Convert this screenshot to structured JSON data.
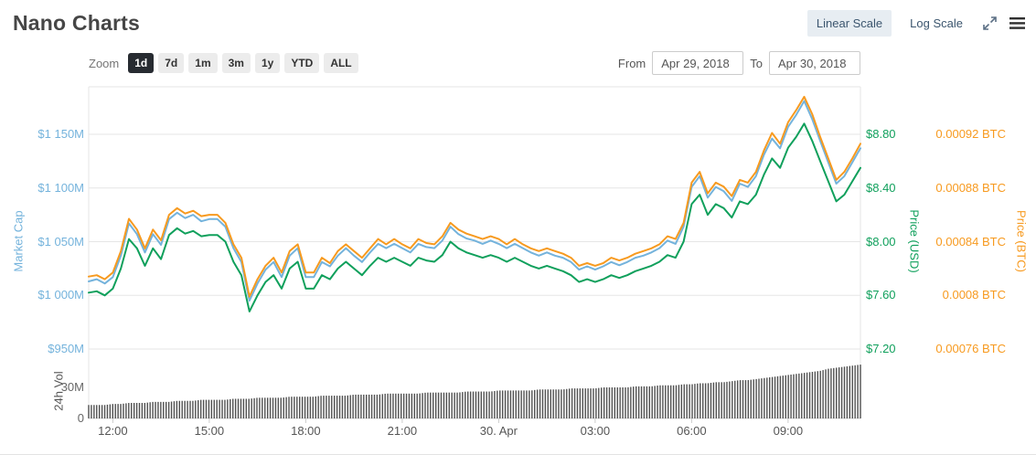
{
  "header": {
    "title": "Nano Charts",
    "linear_scale": "Linear Scale",
    "log_scale": "Log Scale"
  },
  "toolbar": {
    "zoom_label": "Zoom",
    "zoom_buttons": [
      "1d",
      "7d",
      "1m",
      "3m",
      "1y",
      "YTD",
      "ALL"
    ],
    "active_zoom": "1d",
    "from_label": "From",
    "to_label": "To",
    "from_value": "Apr 29, 2018",
    "to_value": "Apr 30, 2018"
  },
  "chart_data": {
    "type": "line",
    "title": "Nano Charts",
    "grid": true,
    "legend": false,
    "x_axis": {
      "labels": [
        {
          "label": "12:00",
          "pos": 0.03125
        },
        {
          "label": "15:00",
          "pos": 0.15625
        },
        {
          "label": "18:00",
          "pos": 0.28125
        },
        {
          "label": "21:00",
          "pos": 0.40625
        },
        {
          "label": "30. Apr",
          "pos": 0.53125
        },
        {
          "label": "03:00",
          "pos": 0.65625
        },
        {
          "label": "06:00",
          "pos": 0.78125
        },
        {
          "label": "09:00",
          "pos": 0.90625
        }
      ]
    },
    "axes": {
      "market_cap": {
        "title": "Market Cap",
        "color": "#74b3dc",
        "side": "left",
        "ticks": [
          {
            "label": "$950M",
            "value": 950
          },
          {
            "label": "$1 000M",
            "value": 1000
          },
          {
            "label": "$1 050M",
            "value": 1050
          },
          {
            "label": "$1 100M",
            "value": 1100
          },
          {
            "label": "$1 150M",
            "value": 1150
          }
        ]
      },
      "price_usd": {
        "title": "Price (USD)",
        "color": "#10a05c",
        "side": "right",
        "ticks": [
          {
            "label": "$7.20",
            "value": 7.2
          },
          {
            "label": "$7.60",
            "value": 7.6
          },
          {
            "label": "$8.00",
            "value": 8.0
          },
          {
            "label": "$8.40",
            "value": 8.4
          },
          {
            "label": "$8.80",
            "value": 8.8
          }
        ]
      },
      "price_btc": {
        "title": "Price (BTC)",
        "color": "#f79a1f",
        "side": "far-right",
        "ticks": [
          {
            "label": "0.00076 BTC",
            "value": 0.00076
          },
          {
            "label": "0.0008 BTC",
            "value": 0.0008
          },
          {
            "label": "0.00084 BTC",
            "value": 0.00084
          },
          {
            "label": "0.00088 BTC",
            "value": 0.00088
          },
          {
            "label": "0.00092 BTC",
            "value": 0.00092
          }
        ]
      },
      "volume": {
        "title": "24h Vol",
        "color": "#555555",
        "side": "left",
        "ticks": [
          {
            "label": "0",
            "value": 0
          },
          {
            "label": "30M",
            "value": 30
          }
        ]
      }
    },
    "series": [
      {
        "name": "Market Cap",
        "axis": "market_cap",
        "color": "#74b3dc",
        "type": "line",
        "unit": "M USD",
        "values": [
          1013,
          1015,
          1011,
          1017,
          1037,
          1067,
          1057,
          1040,
          1057,
          1047,
          1071,
          1077,
          1072,
          1075,
          1069,
          1071,
          1071,
          1064,
          1044,
          1031,
          995,
          1011,
          1024,
          1031,
          1017,
          1037,
          1044,
          1017,
          1017,
          1031,
          1027,
          1037,
          1044,
          1037,
          1031,
          1040,
          1048,
          1044,
          1048,
          1044,
          1040,
          1048,
          1045,
          1044,
          1051,
          1064,
          1057,
          1053,
          1051,
          1048,
          1051,
          1048,
          1044,
          1048,
          1044,
          1040,
          1037,
          1040,
          1037,
          1035,
          1031,
          1024,
          1027,
          1024,
          1027,
          1031,
          1028,
          1031,
          1035,
          1037,
          1040,
          1044,
          1051,
          1048,
          1064,
          1101,
          1111,
          1091,
          1101,
          1097,
          1088,
          1104,
          1101,
          1111,
          1131,
          1146,
          1137,
          1157,
          1168,
          1181,
          1164,
          1144,
          1124,
          1104,
          1111,
          1124,
          1137
        ]
      },
      {
        "name": "Price (USD)",
        "axis": "price_usd",
        "color": "#10a05c",
        "type": "line",
        "unit": "USD",
        "values": [
          7.62,
          7.63,
          7.6,
          7.65,
          7.8,
          8.02,
          7.95,
          7.82,
          7.95,
          7.87,
          8.05,
          8.1,
          8.06,
          8.08,
          8.04,
          8.05,
          8.05,
          8.0,
          7.85,
          7.75,
          7.48,
          7.6,
          7.7,
          7.75,
          7.65,
          7.8,
          7.85,
          7.65,
          7.65,
          7.75,
          7.72,
          7.8,
          7.85,
          7.8,
          7.75,
          7.82,
          7.88,
          7.85,
          7.88,
          7.85,
          7.82,
          7.88,
          7.86,
          7.85,
          7.9,
          8.0,
          7.95,
          7.92,
          7.9,
          7.88,
          7.9,
          7.88,
          7.85,
          7.88,
          7.85,
          7.82,
          7.8,
          7.82,
          7.8,
          7.78,
          7.75,
          7.7,
          7.72,
          7.7,
          7.72,
          7.75,
          7.73,
          7.75,
          7.78,
          7.8,
          7.82,
          7.85,
          7.9,
          7.88,
          8.0,
          8.28,
          8.35,
          8.2,
          8.28,
          8.25,
          8.18,
          8.3,
          8.28,
          8.35,
          8.5,
          8.62,
          8.55,
          8.7,
          8.78,
          8.88,
          8.75,
          8.6,
          8.45,
          8.3,
          8.35,
          8.45,
          8.55
        ]
      },
      {
        "name": "Price (BTC)",
        "axis": "price_btc",
        "color": "#f79a1f",
        "type": "line",
        "unit": "BTC",
        "values": [
          0.000814,
          0.000815,
          0.000812,
          0.000817,
          0.000833,
          0.000857,
          0.000849,
          0.000835,
          0.000849,
          0.000841,
          0.00086,
          0.000865,
          0.000861,
          0.000863,
          0.000859,
          0.00086,
          0.00086,
          0.000854,
          0.000838,
          0.000828,
          0.000799,
          0.000812,
          0.000822,
          0.000828,
          0.000817,
          0.000833,
          0.000838,
          0.000817,
          0.000817,
          0.000828,
          0.000824,
          0.000833,
          0.000838,
          0.000833,
          0.000828,
          0.000835,
          0.000842,
          0.000838,
          0.000842,
          0.000838,
          0.000835,
          0.000842,
          0.000839,
          0.000838,
          0.000844,
          0.000854,
          0.000849,
          0.000846,
          0.000844,
          0.000842,
          0.000844,
          0.000842,
          0.000838,
          0.000842,
          0.000838,
          0.000835,
          0.000833,
          0.000835,
          0.000833,
          0.000831,
          0.000828,
          0.000822,
          0.000824,
          0.000822,
          0.000824,
          0.000828,
          0.000826,
          0.000828,
          0.000831,
          0.000833,
          0.000835,
          0.000838,
          0.000844,
          0.000842,
          0.000854,
          0.000884,
          0.000892,
          0.000876,
          0.000884,
          0.000881,
          0.000874,
          0.000886,
          0.000884,
          0.000892,
          0.000908,
          0.000921,
          0.000913,
          0.000929,
          0.000938,
          0.000948,
          0.000935,
          0.000918,
          0.000902,
          0.000886,
          0.000892,
          0.000902,
          0.000913
        ]
      },
      {
        "name": "24h Vol",
        "axis": "volume",
        "color": "#4f4f4f",
        "type": "bar",
        "unit": "M USD",
        "values": [
          13,
          13,
          13,
          14,
          14,
          15,
          15,
          15,
          16,
          16,
          16,
          17,
          17,
          17,
          18,
          18,
          18,
          18,
          19,
          19,
          19,
          20,
          20,
          20,
          20,
          21,
          21,
          21,
          21,
          22,
          22,
          22,
          22,
          23,
          23,
          23,
          23,
          24,
          24,
          24,
          24,
          24,
          25,
          25,
          25,
          25,
          25,
          26,
          26,
          26,
          26,
          27,
          27,
          27,
          27,
          27,
          28,
          28,
          28,
          28,
          29,
          29,
          29,
          29,
          30,
          30,
          30,
          30,
          31,
          31,
          31,
          32,
          32,
          32,
          33,
          33,
          34,
          34,
          35,
          35,
          36,
          37,
          37,
          38,
          39,
          40,
          41,
          42,
          43,
          44,
          45,
          46,
          48,
          49,
          50,
          51,
          52
        ]
      }
    ]
  }
}
